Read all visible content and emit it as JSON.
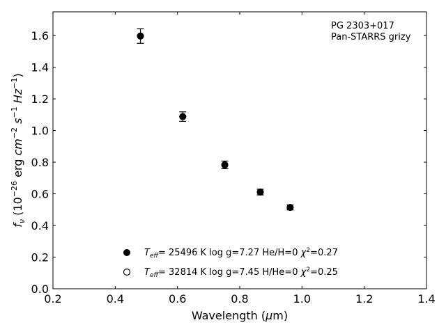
{
  "chart_data": {
    "type": "scatter",
    "xlabel": "Wavelength (μm)",
    "ylabel": "f_ν (10^-26 erg cm^-2 s^-1 Hz^-1)",
    "xlim": [
      0.2,
      1.4
    ],
    "ylim": [
      0.0,
      1.75
    ],
    "xticks": [
      "0.2",
      "0.4",
      "0.6",
      "0.8",
      "1.0",
      "1.2",
      "1.4"
    ],
    "yticks": [
      "0.0",
      "0.2",
      "0.4",
      "0.6",
      "0.8",
      "1.0",
      "1.2",
      "1.4",
      "1.6"
    ],
    "grid": false,
    "annotation": [
      "PG 2303+017",
      "Pan-STARRS grizy"
    ],
    "series": [
      {
        "marker": "filled",
        "color": "#000000",
        "points": [
          {
            "x": 0.481,
            "y": 1.597,
            "err": 0.046
          },
          {
            "x": 0.617,
            "y": 1.088,
            "err": 0.03
          },
          {
            "x": 0.752,
            "y": 0.783,
            "err": 0.024
          },
          {
            "x": 0.866,
            "y": 0.611,
            "err": 0.018
          },
          {
            "x": 0.962,
            "y": 0.514,
            "err": 0.016
          }
        ]
      },
      {
        "marker": "open",
        "color": "#000000",
        "points": [
          {
            "x": 0.481,
            "y": 1.597,
            "err": 0.046
          },
          {
            "x": 0.617,
            "y": 1.088,
            "err": 0.03
          },
          {
            "x": 0.752,
            "y": 0.783,
            "err": 0.024
          },
          {
            "x": 0.866,
            "y": 0.611,
            "err": 0.018
          },
          {
            "x": 0.962,
            "y": 0.514,
            "err": 0.016
          }
        ]
      }
    ],
    "legend": {
      "placement": "lower-center",
      "entries": [
        {
          "marker": "filled",
          "teff": "25496",
          "logg": "7.27",
          "ratio_label": "He/H=0",
          "chi2": "0.27"
        },
        {
          "marker": "open",
          "teff": "32814",
          "logg": "7.45",
          "ratio_label": "H/He=0",
          "chi2": "0.25"
        }
      ]
    }
  }
}
